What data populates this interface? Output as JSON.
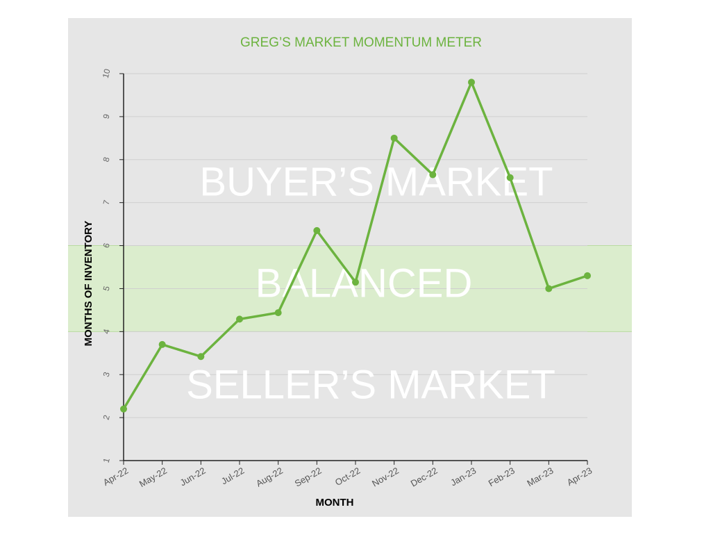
{
  "chart_data": {
    "type": "line",
    "title": "GREG’S MARKET MOMENTUM METER",
    "x_label": "MONTH",
    "y_label": "MONTHS OF INVENTORY",
    "categories": [
      "Apr-22",
      "May-22",
      "Jun-22",
      "Jul-22",
      "Aug-22",
      "Sep-22",
      "Oct-22",
      "Nov-22",
      "Dec-22",
      "Jan-23",
      "Feb-23",
      "Mar-23",
      "Apr-23"
    ],
    "values": [
      2.2,
      3.7,
      3.42,
      4.29,
      4.44,
      6.35,
      5.15,
      8.5,
      7.65,
      9.8,
      7.58,
      5.0,
      5.3
    ],
    "color": "#6cb33f",
    "ylim": [
      1,
      10
    ],
    "yticks": [
      1,
      2,
      3,
      4,
      5,
      6,
      7,
      8,
      9,
      10
    ],
    "grid": true,
    "balanced_range": [
      4,
      6
    ],
    "band_color": "#d8edc8",
    "annotations": [
      "BUYER’S MARKET",
      "BALANCED",
      "SELLER’S MARKET"
    ]
  }
}
